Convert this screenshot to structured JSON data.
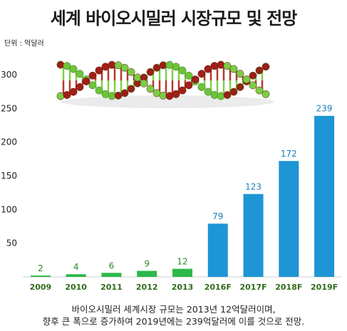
{
  "title": "세계 바이오시밀러 시장규모 및 전망",
  "unit_label": "단위 : 억달러",
  "caption": {
    "line1": "바이오시밀러 세계시장 규모는 2013년 12억달러이며,",
    "line2": "향후 큰 폭으로 증가하여 2019년에는 239억달러에 이를 것으로 전망."
  },
  "chart_data": {
    "type": "bar",
    "title": "세계 바이오시밀러 시장규모 및 전망",
    "xlabel": "",
    "ylabel": "단위 : 억달러",
    "categories": [
      "2009",
      "2010",
      "2011",
      "2012",
      "2013",
      "2016F",
      "2017F",
      "2018F",
      "2019F"
    ],
    "values": [
      2,
      4,
      6,
      9,
      12,
      79,
      123,
      172,
      239
    ],
    "data_labels": [
      "2",
      "4",
      "6",
      "9",
      "12",
      "79",
      "123",
      "172",
      "239"
    ],
    "yticks": [
      50,
      100,
      150,
      200,
      250,
      300
    ],
    "ytick_labels": [
      "50",
      "100",
      "150",
      "200",
      "250",
      "300"
    ],
    "ylim": [
      0,
      330
    ],
    "grid": false,
    "legend": "none",
    "colors": {
      "actual": "#2db84a",
      "forecast": "#1e95d4",
      "actual_label": "#2f8a2a",
      "forecast_label": "#1a7fb8",
      "xtick": "#2f6b1a"
    },
    "forecast_from_index": 5,
    "decoration": "dna-double-helix"
  }
}
